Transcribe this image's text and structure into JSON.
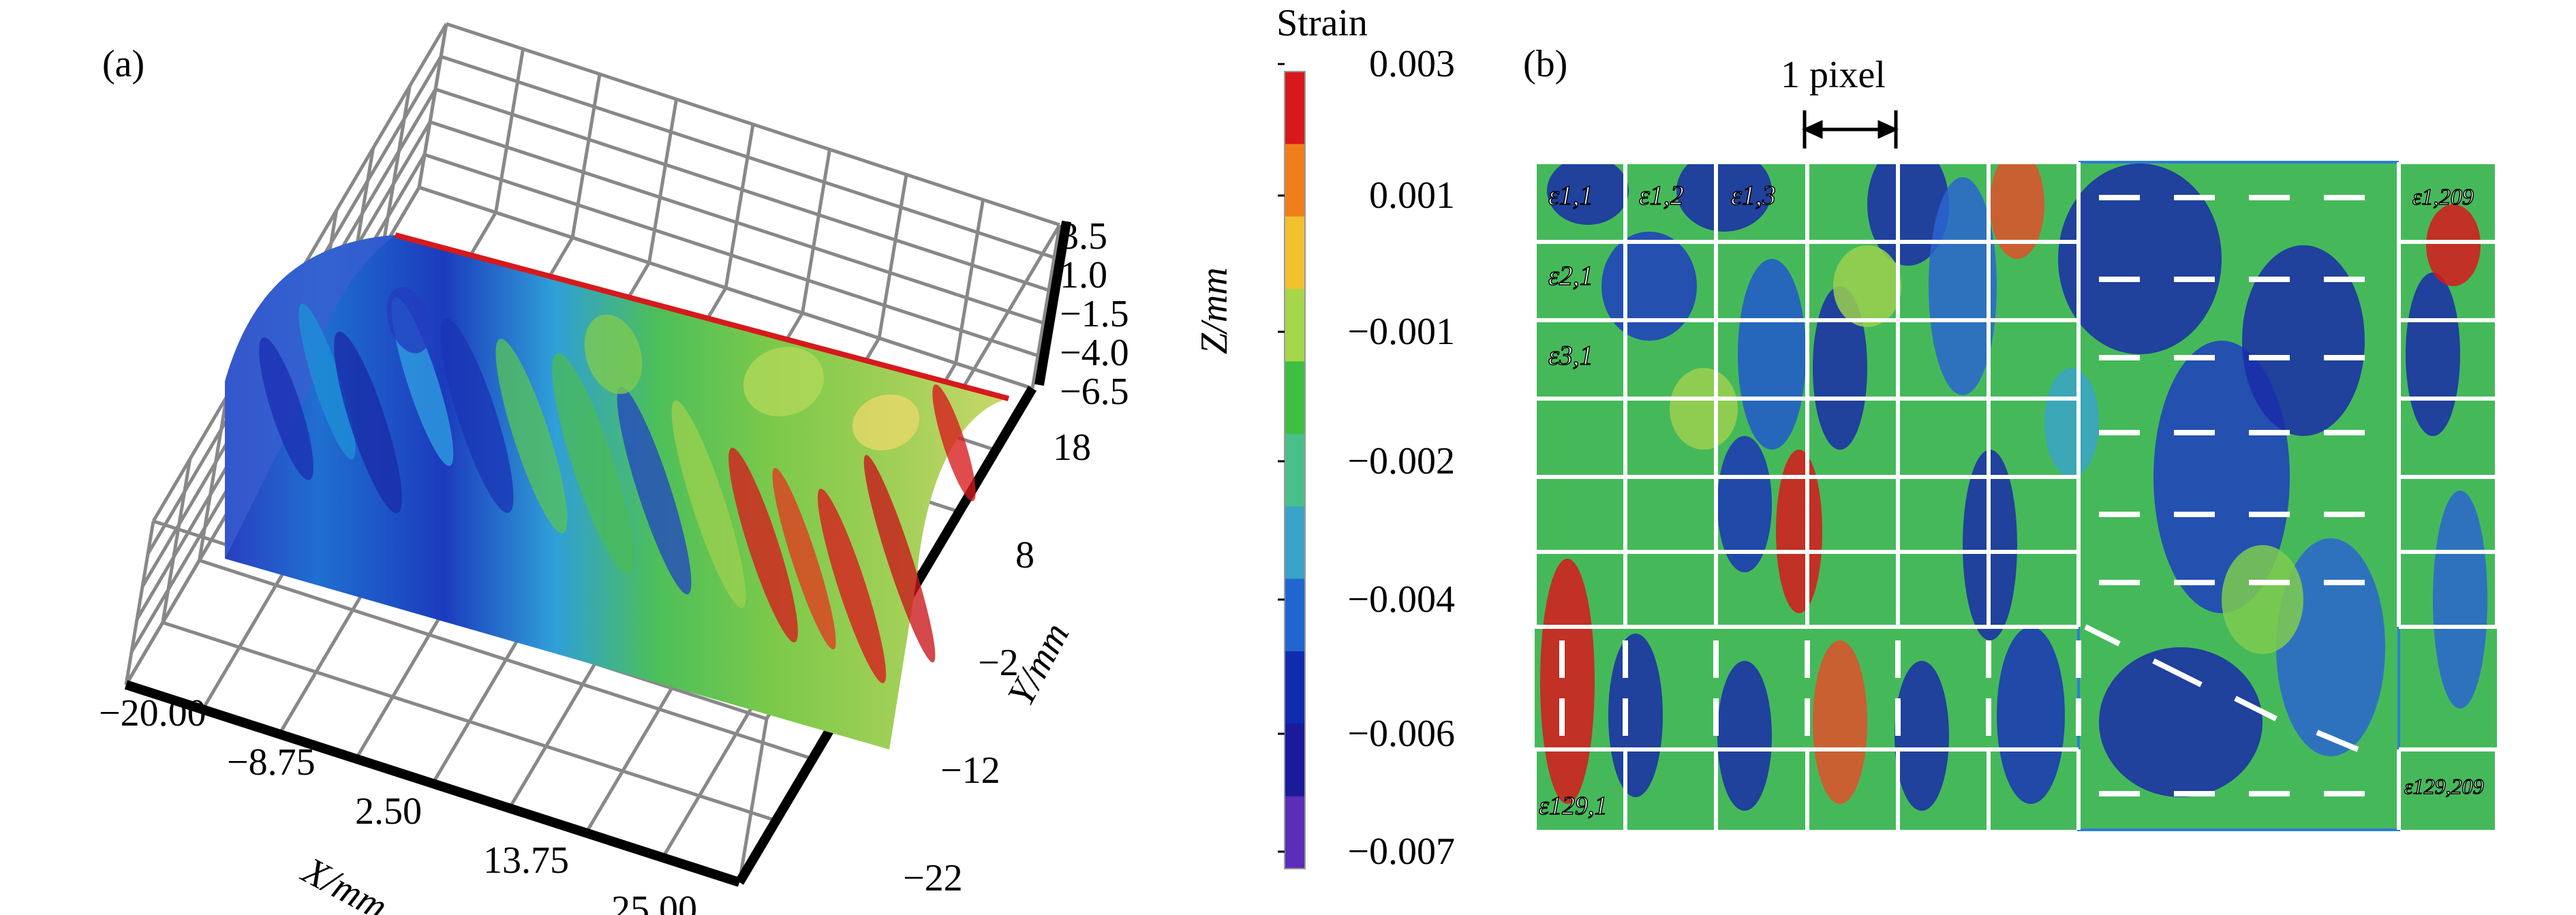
{
  "panel_a": {
    "label": "(a)",
    "x_axis": {
      "label": "X/mm",
      "ticks": [
        "−20.00",
        "−8.75",
        "2.50",
        "13.75",
        "25.00"
      ]
    },
    "y_axis": {
      "label": "Y/mm",
      "ticks": [
        "18",
        "8",
        "−2",
        "−12",
        "−22"
      ]
    },
    "z_axis": {
      "label": "Z/mm",
      "ticks": [
        "3.5",
        "1.0",
        "−1.5",
        "−4.0",
        "−6.5"
      ]
    }
  },
  "colorbar": {
    "title": "Strain",
    "ticks": [
      "0.003",
      "0.001",
      "−0.001",
      "−0.002",
      "−0.004",
      "−0.006",
      "−0.007"
    ],
    "colors": [
      "#d7191c",
      "#f07f1a",
      "#f2c12e",
      "#a6d64a",
      "#3fbf3f",
      "#49c08b",
      "#3aa3c8",
      "#2166ce",
      "#0f2bb0",
      "#1a1a9a",
      "#5c2db8"
    ]
  },
  "panel_b": {
    "label": "(b)",
    "scale_label": "1 pixel",
    "cell_labels": {
      "e11": "ε1,1",
      "e12": "ε1,2",
      "e13": "ε1,3",
      "e21": "ε2,1",
      "e31": "ε3,1",
      "e1209": "ε1,209",
      "e1291": "ε129,1",
      "e129209": "ε129,209"
    }
  },
  "chart_data": [
    {
      "type": "heatmap",
      "title": "",
      "xlabel": "X/mm",
      "ylabel": "Y/mm",
      "zlabel": "Z/mm",
      "xlim": [
        -20.0,
        25.0
      ],
      "ylim": [
        -22,
        18
      ],
      "zlim": [
        -6.5,
        3.5
      ],
      "x_ticks": [
        -20.0,
        -8.75,
        2.5,
        13.75,
        25.0
      ],
      "y_ticks": [
        18,
        8,
        -2,
        -12,
        -22
      ],
      "z_ticks": [
        3.5,
        1.0,
        -1.5,
        -4.0,
        -6.5
      ],
      "colorbar_label": "Strain",
      "colorbar_ticks": [
        0.003,
        0.001,
        -0.001,
        -0.002,
        -0.004,
        -0.006,
        -0.007
      ],
      "colorbar_range": [
        -0.007,
        0.003
      ],
      "grid": true
    },
    {
      "type": "heatmap",
      "rows": 129,
      "columns": 209,
      "colorbar_label": "Strain",
      "colorbar_range": [
        -0.007,
        0.003
      ]
    }
  ]
}
